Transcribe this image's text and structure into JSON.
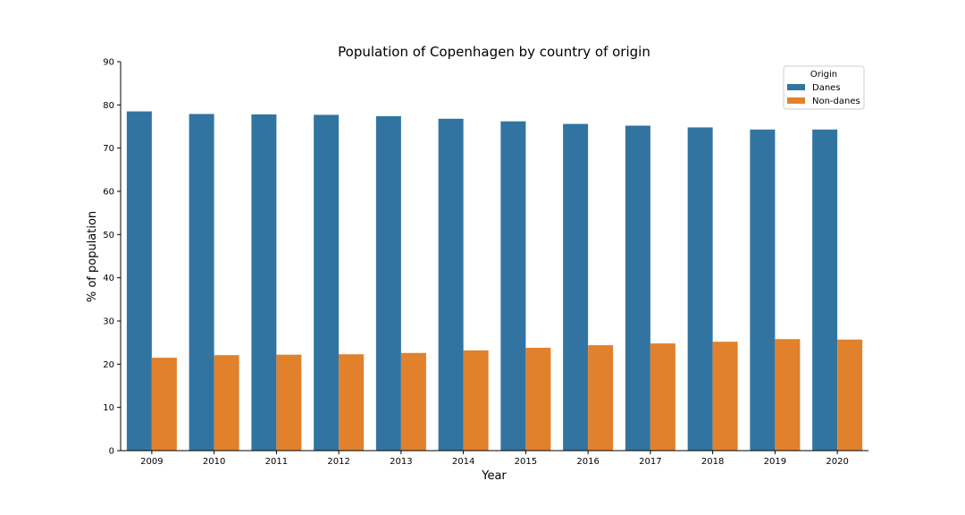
{
  "chart_data": {
    "type": "bar",
    "title": "Population of Copenhagen by country of origin",
    "xlabel": "Year",
    "ylabel": "% of population",
    "ylim": [
      0,
      90
    ],
    "yticks": [
      0,
      10,
      20,
      30,
      40,
      50,
      60,
      70,
      80,
      90
    ],
    "categories": [
      "2009",
      "2010",
      "2011",
      "2012",
      "2013",
      "2014",
      "2015",
      "2016",
      "2017",
      "2018",
      "2019",
      "2020"
    ],
    "series": [
      {
        "name": "Danes",
        "color": "#3274a1",
        "values": [
          78.5,
          77.9,
          77.8,
          77.7,
          77.4,
          76.8,
          76.2,
          75.6,
          75.2,
          74.8,
          74.3,
          74.3
        ]
      },
      {
        "name": "Non-danes",
        "color": "#e1812c",
        "values": [
          21.5,
          22.1,
          22.2,
          22.3,
          22.6,
          23.2,
          23.8,
          24.4,
          24.8,
          25.2,
          25.8,
          25.7
        ]
      }
    ],
    "legend": {
      "title": "Origin",
      "position": "top-right"
    },
    "grid": false
  }
}
